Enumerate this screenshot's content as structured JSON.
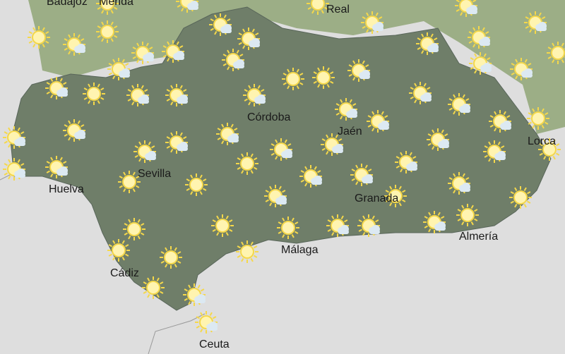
{
  "cities": [
    "Badajoz",
    "Mérida",
    "Real",
    "Córdoba",
    "Jaén",
    "Lorca",
    "Sevilla",
    "Huelva",
    "Granada",
    "Almería",
    "Cádiz",
    "Málaga",
    "Ceuta"
  ],
  "legend_icons": {
    "s": "sun-icon",
    "c": "sun-with-cloud-icon"
  },
  "forecast_icons": [
    "s",
    "c",
    "s",
    "c",
    "s",
    "c",
    "s",
    "c",
    "c",
    "c",
    "c",
    "c",
    "c",
    "s",
    "c",
    "c",
    "c",
    "c",
    "c",
    "c",
    "c",
    "s",
    "c",
    "c",
    "s",
    "s",
    "c",
    "c",
    "c",
    "c",
    "c",
    "c",
    "c",
    "c",
    "c",
    "c",
    "c",
    "c",
    "c",
    "c",
    "s",
    "c",
    "c",
    "c",
    "s",
    "c",
    "c",
    "s",
    "s",
    "s",
    "c",
    "c",
    "c",
    "c",
    "s",
    "s",
    "s",
    "s",
    "s",
    "s",
    "c",
    "c",
    "c",
    "s",
    "s",
    "s",
    "s",
    "c",
    "c"
  ],
  "colors": {
    "sea": "#dedede",
    "andalusia": "#6f7e69",
    "neighbors": "#9cae86",
    "sun": "#f5d84a",
    "cloud": "#dce9f2",
    "label": "#1a1a1a"
  }
}
